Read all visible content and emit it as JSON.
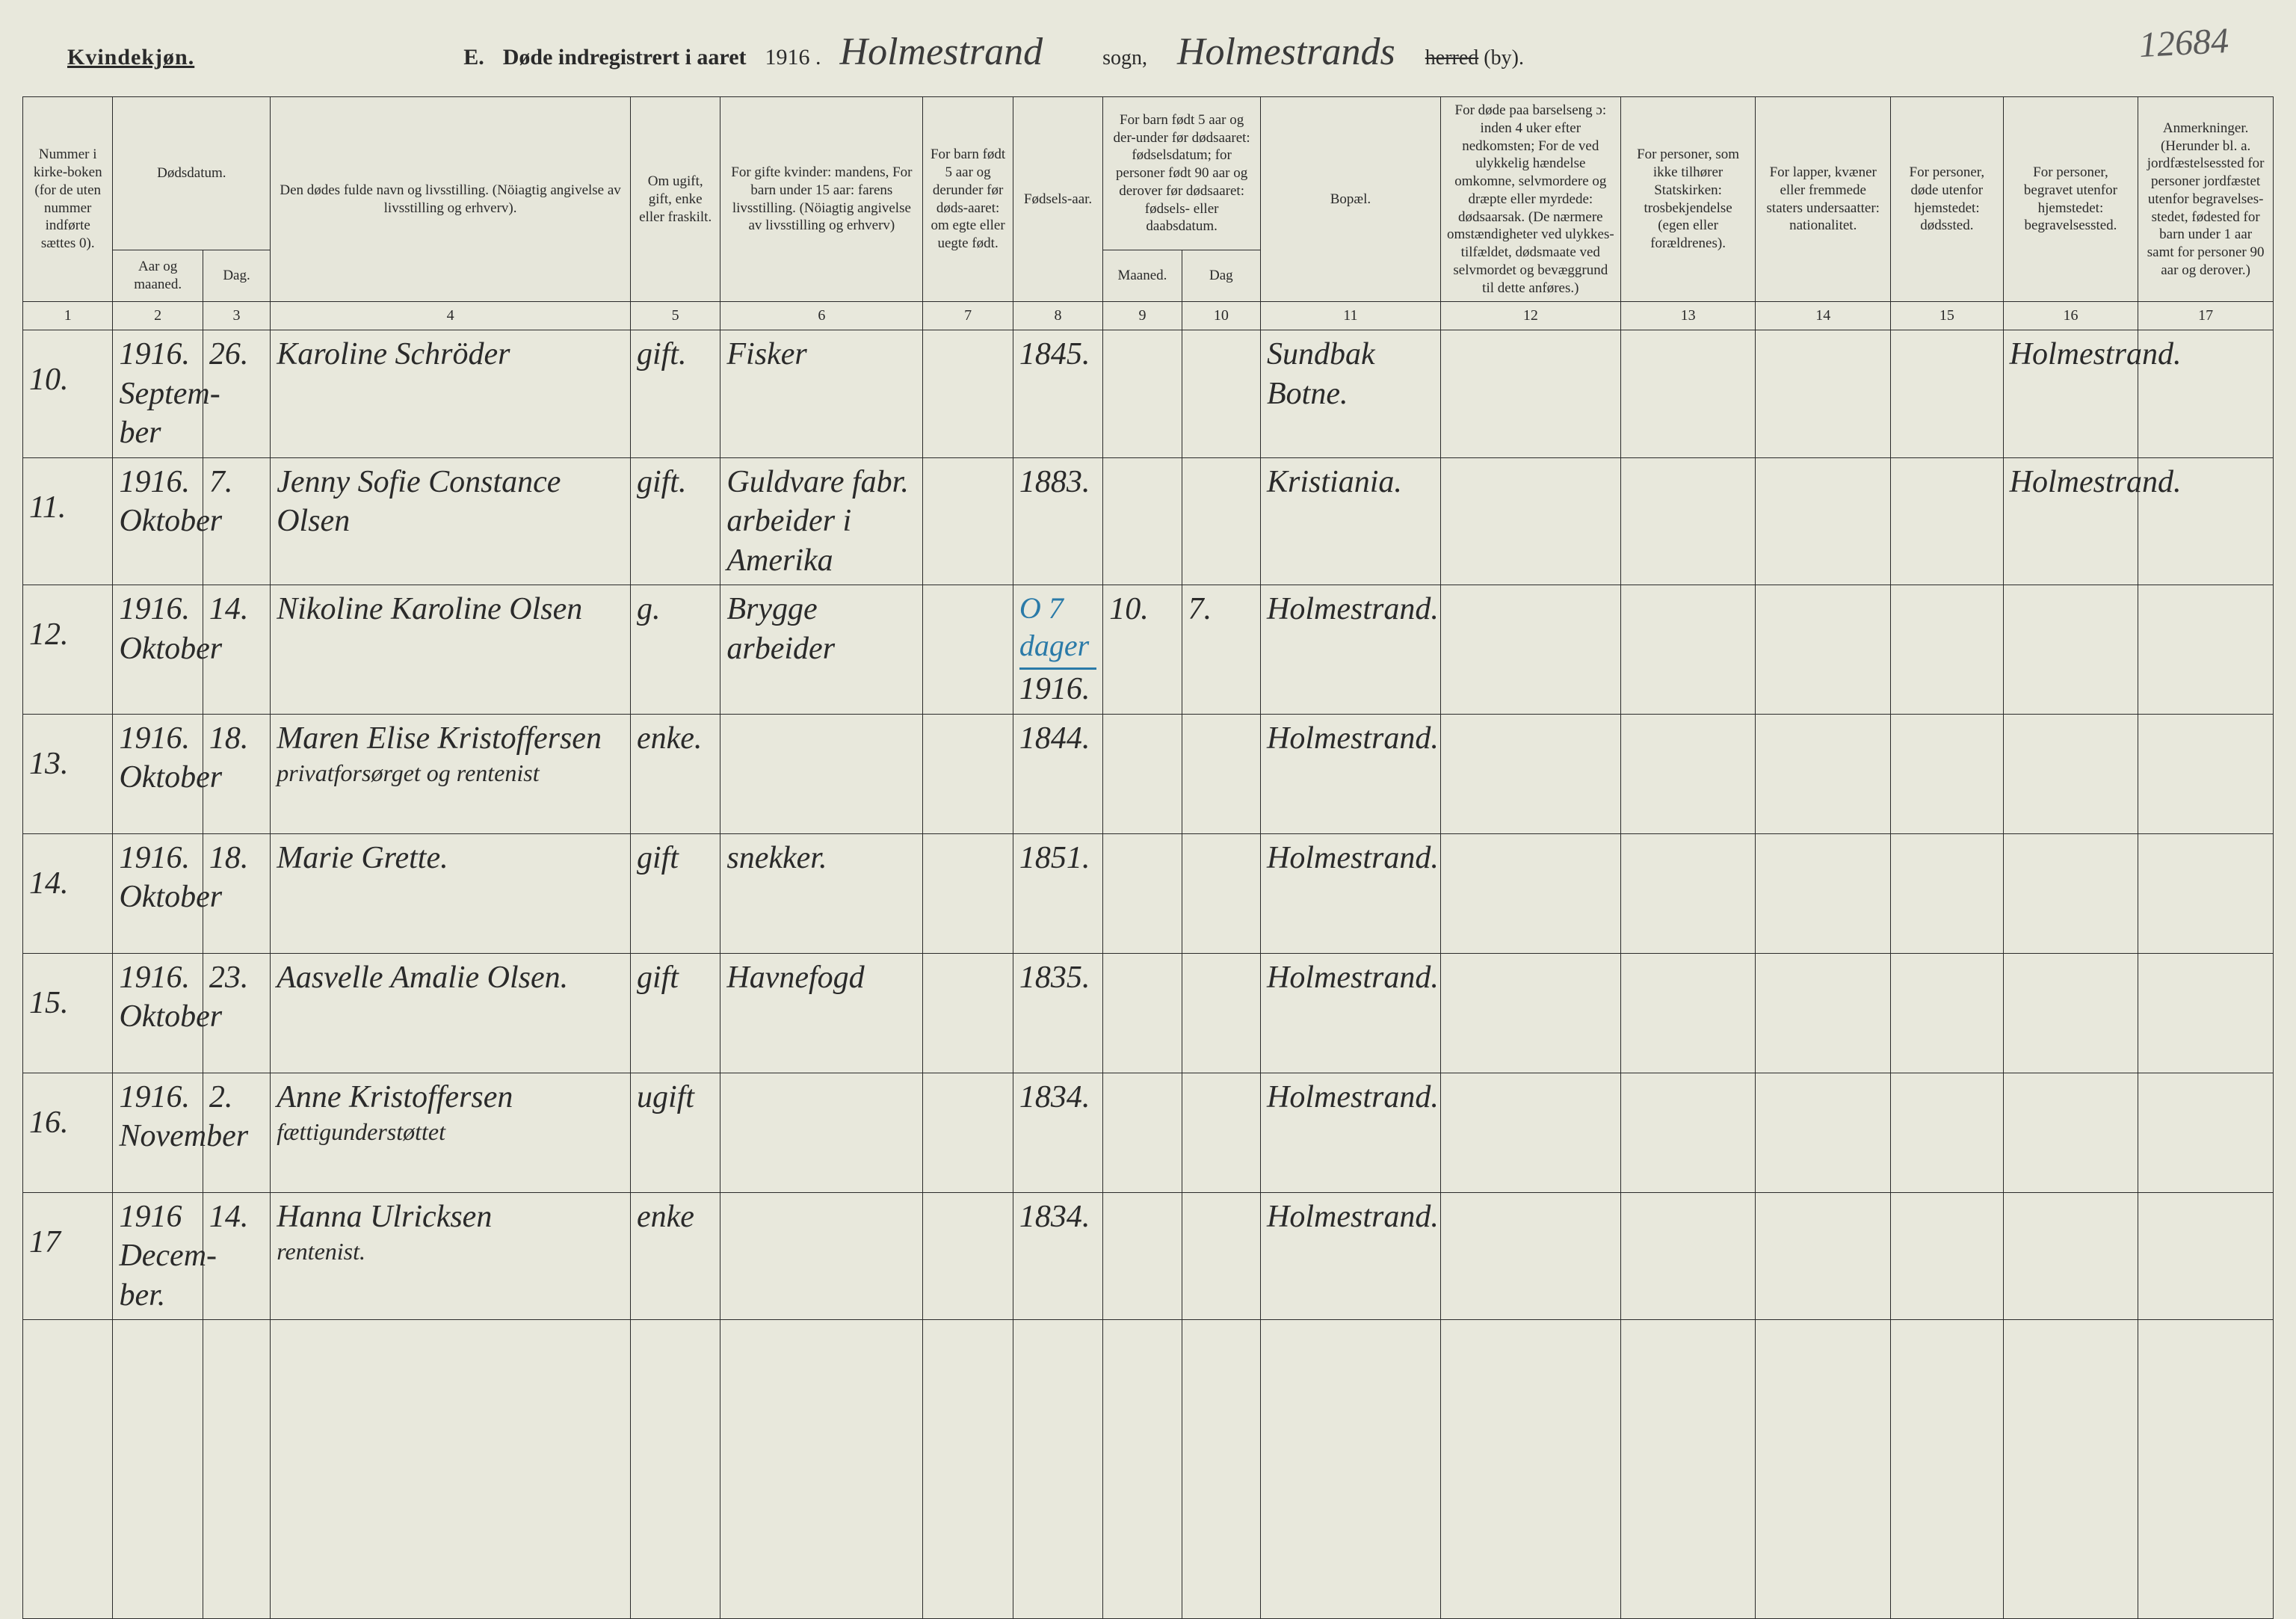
{
  "page_number_handwritten": "12684",
  "header": {
    "gender_label": "Kvindekjøn.",
    "section_letter": "E.",
    "register_title": "Døde indregistrert i aaret",
    "year": "1916 .",
    "sogn_handwritten": "Holmestrand",
    "sogn_label": "sogn,",
    "herred_handwritten": "Holmestrands",
    "herred_strike": "herred",
    "by_label": "(by).",
    "colors": {
      "ink": "#2a2a2a",
      "paper": "#e8e8dc",
      "blue": "#2a7aa8"
    }
  },
  "columns": {
    "c1": "Nummer i kirke-boken (for de uten nummer indførte sættes 0).",
    "c2_group": "Dødsdatum.",
    "c2": "Aar og maaned.",
    "c3": "Dag.",
    "c4": "Den dødes fulde navn og livsstilling. (Nöiagtig angivelse av livsstilling og erhverv).",
    "c5": "Om ugift, gift, enke eller fraskilt.",
    "c6": "For gifte kvinder: mandens, For barn under 15 aar: farens livsstilling. (Nöiagtig angivelse av livsstilling og erhverv)",
    "c7": "For barn født 5 aar og derunder før døds-aaret: om egte eller uegte født.",
    "c8": "Fødsels-aar.",
    "c910_group": "For barn født 5 aar og der-under før dødsaaret: fødselsdatum; for personer født 90 aar og derover før dødsaaret: fødsels- eller daabsdatum.",
    "c9": "Maaned.",
    "c10": "Dag",
    "c11": "Bopæl.",
    "c12": "For døde paa barselseng ɔ: inden 4 uker efter nedkomsten; For de ved ulykkelig hændelse omkomne, selvmordere og dræpte eller myrdede: dødsaarsak. (De nærmere omstændigheter ved ulykkes-tilfældet, dødsmaate ved selvmordet og bevæggrund til dette anføres.)",
    "c13": "For personer, som ikke tilhører Statskirken: trosbekjendelse (egen eller forældrenes).",
    "c14": "For lapper, kvæner eller fremmede staters undersaatter: nationalitet.",
    "c15": "For personer, døde utenfor hjemstedet: dødssted.",
    "c16": "For personer, begravet utenfor hjemstedet: begravelsessted.",
    "c17": "Anmerkninger. (Herunder bl. a. jordfæstelsessted for personer jordfæstet utenfor begravelses-stedet, fødested for barn under 1 aar samt for personer 90 aar og derover.)"
  },
  "colnums": [
    "1",
    "2",
    "3",
    "4",
    "5",
    "6",
    "7",
    "8",
    "9",
    "10",
    "11",
    "12",
    "13",
    "14",
    "15",
    "16",
    "17"
  ],
  "rows": [
    {
      "num": "10.",
      "aarmaaned": "1916. Septem-ber",
      "dag": "26.",
      "navn": "Karoline Schröder",
      "status": "gift.",
      "yrke": "Fisker",
      "egte": "",
      "fodselsaar": "1845.",
      "fmaaned": "",
      "fdag": "",
      "bopael": "Sundbak Botne.",
      "c12": "",
      "c13": "",
      "c14": "",
      "c15": "",
      "begrav": "Holmestrand.",
      "anm": ""
    },
    {
      "num": "11.",
      "aarmaaned": "1916. Oktober",
      "dag": "7.",
      "navn": "Jenny Sofie Constance Olsen",
      "status": "gift.",
      "yrke": "Guldvare fabr. arbeider i Amerika",
      "egte": "",
      "fodselsaar": "1883.",
      "fmaaned": "",
      "fdag": "",
      "bopael": "Kristiania.",
      "c12": "",
      "c13": "",
      "c14": "",
      "c15": "",
      "begrav": "Holmestrand.",
      "anm": ""
    },
    {
      "num": "12.",
      "aarmaaned": "1916. Oktober",
      "dag": "14.",
      "navn": "Nikoline Karoline Olsen",
      "status": "g.",
      "yrke": "Brygge arbeider",
      "egte": "",
      "fodselsaar": "1916.",
      "blue_note": "O 7 dager",
      "fmaaned": "10.",
      "fdag": "7.",
      "bopael": "Holmestrand.",
      "c12": "",
      "c13": "",
      "c14": "",
      "c15": "",
      "begrav": "",
      "anm": ""
    },
    {
      "num": "13.",
      "aarmaaned": "1916. Oktober",
      "dag": "18.",
      "navn": "Maren Elise Kristoffersen",
      "navn_sub": "privatforsørget og rentenist",
      "status": "enke.",
      "yrke": "",
      "egte": "",
      "fodselsaar": "1844.",
      "fmaaned": "",
      "fdag": "",
      "bopael": "Holmestrand.",
      "c12": "",
      "c13": "",
      "c14": "",
      "c15": "",
      "begrav": "",
      "anm": ""
    },
    {
      "num": "14.",
      "aarmaaned": "1916. Oktober",
      "dag": "18.",
      "navn": "Marie Grette.",
      "status": "gift",
      "yrke": "snekker.",
      "egte": "",
      "fodselsaar": "1851.",
      "fmaaned": "",
      "fdag": "",
      "bopael": "Holmestrand.",
      "c12": "",
      "c13": "",
      "c14": "",
      "c15": "",
      "begrav": "",
      "anm": ""
    },
    {
      "num": "15.",
      "aarmaaned": "1916. Oktober",
      "dag": "23.",
      "navn": "Aasvelle Amalie Olsen.",
      "status": "gift",
      "yrke": "Havnefogd",
      "egte": "",
      "fodselsaar": "1835.",
      "fmaaned": "",
      "fdag": "",
      "bopael": "Holmestrand.",
      "c12": "",
      "c13": "",
      "c14": "",
      "c15": "",
      "begrav": "",
      "anm": ""
    },
    {
      "num": "16.",
      "aarmaaned": "1916. November",
      "dag": "2.",
      "navn": "Anne Kristoffersen",
      "navn_sub": "fættigunderstøttet",
      "status": "ugift",
      "yrke": "",
      "egte": "",
      "fodselsaar": "1834.",
      "fmaaned": "",
      "fdag": "",
      "bopael": "Holmestrand.",
      "c12": "",
      "c13": "",
      "c14": "",
      "c15": "",
      "begrav": "",
      "anm": ""
    },
    {
      "num": "17",
      "aarmaaned": "1916 Decem-ber.",
      "dag": "14.",
      "navn": "Hanna Ulricksen",
      "navn_sub": "rentenist.",
      "status": "enke",
      "yrke": "",
      "egte": "",
      "fodselsaar": "1834.",
      "fmaaned": "",
      "fdag": "",
      "bopael": "Holmestrand.",
      "c12": "",
      "c13": "",
      "c14": "",
      "c15": "",
      "begrav": "",
      "anm": ""
    }
  ]
}
